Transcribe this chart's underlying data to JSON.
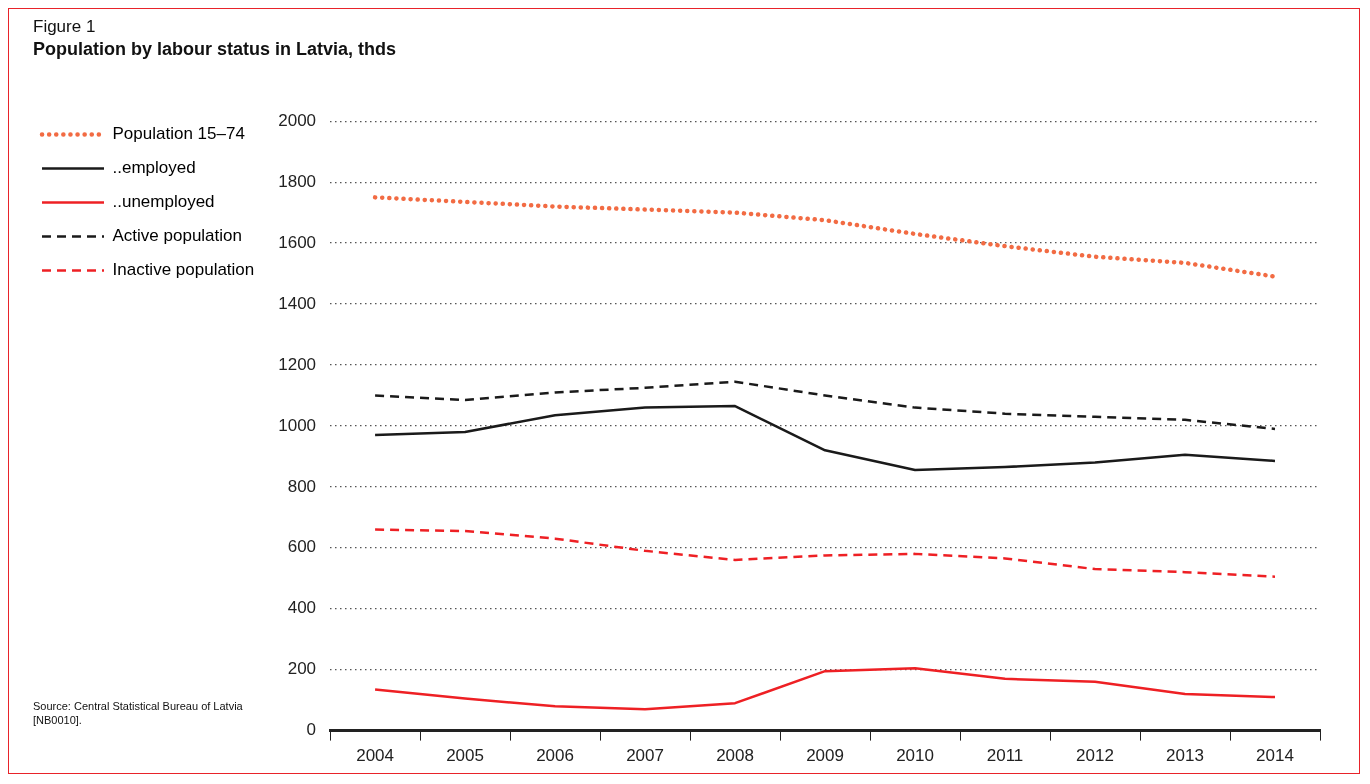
{
  "chart_data": {
    "type": "line",
    "title": "Population by labour status in Latvia, thds",
    "subtitle": "Figure 1",
    "annotations": [
      "Source: Central Statistical Bureau of Latvia [NB0010]."
    ],
    "categories": [
      "2004",
      "2005",
      "2006",
      "2007",
      "2008",
      "2009",
      "2010",
      "2011",
      "2012",
      "2013",
      "2014"
    ],
    "series": [
      {
        "name": "Population 15–74",
        "color": "#f26b43",
        "line_style": "dotted",
        "values": [
          1750,
          1735,
          1720,
          1710,
          1700,
          1675,
          1630,
          1590,
          1555,
          1535,
          1490
        ]
      },
      {
        "name": "..employed",
        "color": "#1a1a1a",
        "line_style": "solid",
        "values": [
          970,
          980,
          1035,
          1060,
          1065,
          920,
          855,
          865,
          880,
          905,
          885
        ]
      },
      {
        "name": "..unemployed",
        "color": "#ee2024",
        "line_style": "solid",
        "values": [
          135,
          105,
          80,
          70,
          90,
          195,
          205,
          170,
          160,
          120,
          110
        ]
      },
      {
        "name": "Active population",
        "color": "#1a1a1a",
        "line_style": "dashed",
        "values": [
          1100,
          1085,
          1110,
          1125,
          1145,
          1100,
          1060,
          1040,
          1030,
          1020,
          990
        ]
      },
      {
        "name": "Inactive population",
        "color": "#ee2024",
        "line_style": "dashed",
        "values": [
          660,
          655,
          630,
          590,
          560,
          575,
          580,
          565,
          530,
          520,
          505
        ]
      }
    ],
    "ylim": [
      0,
      2000
    ],
    "yticks": [
      0,
      200,
      400,
      600,
      800,
      1000,
      1200,
      1400,
      1600,
      1800,
      2000
    ],
    "grid": "y",
    "legend": "left",
    "marker": "none"
  }
}
